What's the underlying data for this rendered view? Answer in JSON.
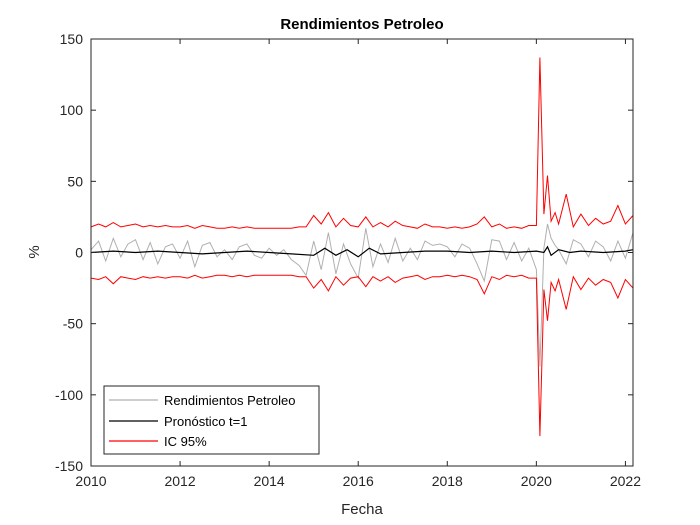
{
  "chart_data": {
    "type": "line",
    "title": "Rendimientos Petroleo",
    "xlabel": "Fecha",
    "ylabel": "%",
    "xlim": [
      2010,
      2022.17
    ],
    "ylim": [
      -150,
      150
    ],
    "xticks": [
      2010,
      2012,
      2014,
      2016,
      2018,
      2020,
      2022
    ],
    "yticks": [
      -150,
      -100,
      -50,
      0,
      50,
      100,
      150
    ],
    "xtick_labels": [
      "2010",
      "2012",
      "2014",
      "2016",
      "2018",
      "2020",
      "2022"
    ],
    "ytick_labels": [
      "-150",
      "-100",
      "-50",
      "0",
      "50",
      "100",
      "150"
    ],
    "grid": false,
    "legend_placement": "bottom-left",
    "series": [
      {
        "name": "Rendimientos Petroleo",
        "color": "#b0b0b0",
        "x": [
          2010.0,
          2010.17,
          2010.33,
          2010.5,
          2010.67,
          2010.83,
          2011.0,
          2011.17,
          2011.33,
          2011.5,
          2011.67,
          2011.83,
          2012.0,
          2012.17,
          2012.33,
          2012.5,
          2012.67,
          2012.83,
          2013.0,
          2013.17,
          2013.33,
          2013.5,
          2013.67,
          2013.83,
          2014.0,
          2014.17,
          2014.33,
          2014.5,
          2014.67,
          2014.83,
          2015.0,
          2015.17,
          2015.33,
          2015.5,
          2015.67,
          2015.83,
          2016.0,
          2016.17,
          2016.33,
          2016.5,
          2016.67,
          2016.83,
          2017.0,
          2017.17,
          2017.33,
          2017.5,
          2017.67,
          2017.83,
          2018.0,
          2018.17,
          2018.33,
          2018.5,
          2018.67,
          2018.83,
          2019.0,
          2019.17,
          2019.33,
          2019.5,
          2019.67,
          2019.83,
          2020.0,
          2020.08,
          2020.17,
          2020.25,
          2020.33,
          2020.42,
          2020.5,
          2020.67,
          2020.83,
          2021.0,
          2021.17,
          2021.33,
          2021.5,
          2021.67,
          2021.83,
          2022.0,
          2022.17
        ],
        "y": [
          2,
          8,
          -6,
          10,
          -3,
          6,
          9,
          -5,
          7,
          -8,
          4,
          6,
          -4,
          8,
          -10,
          5,
          7,
          -3,
          2,
          -5,
          4,
          6,
          -2,
          -4,
          3,
          -2,
          2,
          -5,
          -9,
          -16,
          8,
          -12,
          14,
          -15,
          6,
          -8,
          -18,
          17,
          -10,
          6,
          -7,
          10,
          -6,
          3,
          -5,
          8,
          5,
          6,
          4,
          -3,
          6,
          3,
          -8,
          -20,
          9,
          8,
          -5,
          7,
          -6,
          3,
          -12,
          -80,
          3,
          20,
          10,
          5,
          2,
          -8,
          9,
          6,
          -3,
          8,
          4,
          -6,
          8,
          -4,
          14
        ]
      },
      {
        "name": "Pronóstico t=1",
        "color": "#000000",
        "x": [
          2010.0,
          2010.5,
          2011.0,
          2011.5,
          2012.0,
          2012.5,
          2013.0,
          2013.5,
          2014.0,
          2014.5,
          2015.0,
          2015.25,
          2015.5,
          2015.75,
          2016.0,
          2016.25,
          2016.5,
          2017.0,
          2017.5,
          2018.0,
          2018.5,
          2019.0,
          2019.5,
          2020.0,
          2020.17,
          2020.25,
          2020.33,
          2020.5,
          2020.75,
          2021.0,
          2021.5,
          2022.0,
          2022.17
        ],
        "y": [
          0,
          1,
          0,
          1,
          0,
          -1,
          0,
          1,
          0,
          -1,
          -2,
          3,
          -2,
          2,
          -3,
          3,
          -1,
          0,
          1,
          1,
          0,
          1,
          0,
          1,
          0,
          4,
          -2,
          2,
          0,
          1,
          0,
          1,
          2
        ]
      },
      {
        "name": "IC 95%",
        "color": "#ff0000",
        "x": [
          2010.0,
          2010.17,
          2010.33,
          2010.5,
          2010.67,
          2010.83,
          2011.0,
          2011.17,
          2011.33,
          2011.5,
          2011.67,
          2011.83,
          2012.0,
          2012.17,
          2012.33,
          2012.5,
          2012.67,
          2012.83,
          2013.0,
          2013.17,
          2013.33,
          2013.5,
          2013.67,
          2013.83,
          2014.0,
          2014.17,
          2014.33,
          2014.5,
          2014.67,
          2014.83,
          2015.0,
          2015.17,
          2015.33,
          2015.5,
          2015.67,
          2015.83,
          2016.0,
          2016.17,
          2016.33,
          2016.5,
          2016.67,
          2016.83,
          2017.0,
          2017.17,
          2017.33,
          2017.5,
          2017.67,
          2017.83,
          2018.0,
          2018.17,
          2018.33,
          2018.5,
          2018.67,
          2018.83,
          2019.0,
          2019.17,
          2019.33,
          2019.5,
          2019.67,
          2019.83,
          2020.0,
          2020.08,
          2020.17,
          2020.25,
          2020.33,
          2020.42,
          2020.5,
          2020.67,
          2020.83,
          2021.0,
          2021.17,
          2021.33,
          2021.5,
          2021.67,
          2021.83,
          2022.0,
          2022.17
        ],
        "y_upper": [
          18,
          20,
          18,
          21,
          18,
          19,
          20,
          18,
          19,
          18,
          19,
          18,
          18,
          19,
          17,
          19,
          18,
          17,
          17,
          18,
          17,
          18,
          17,
          17,
          17,
          17,
          17,
          17,
          18,
          18,
          26,
          20,
          28,
          18,
          24,
          19,
          18,
          25,
          18,
          21,
          18,
          22,
          19,
          18,
          17,
          20,
          18,
          18,
          17,
          18,
          17,
          18,
          20,
          25,
          18,
          20,
          17,
          18,
          17,
          19,
          19,
          137,
          27,
          54,
          22,
          28,
          20,
          41,
          18,
          27,
          19,
          24,
          20,
          22,
          33,
          20,
          26
        ],
        "y_lower": [
          -18,
          -19,
          -17,
          -22,
          -17,
          -18,
          -19,
          -17,
          -18,
          -17,
          -18,
          -17,
          -17,
          -18,
          -16,
          -18,
          -17,
          -16,
          -16,
          -17,
          -16,
          -17,
          -16,
          -16,
          -16,
          -16,
          -16,
          -16,
          -17,
          -17,
          -25,
          -19,
          -27,
          -17,
          -23,
          -18,
          -17,
          -24,
          -17,
          -20,
          -17,
          -21,
          -18,
          -17,
          -16,
          -19,
          -17,
          -17,
          -16,
          -17,
          -16,
          -17,
          -19,
          -29,
          -17,
          -19,
          -16,
          -17,
          -16,
          -18,
          -18,
          -129,
          -26,
          -48,
          -21,
          -27,
          -19,
          -40,
          -17,
          -26,
          -18,
          -23,
          -19,
          -21,
          -32,
          -19,
          -25
        ]
      }
    ]
  }
}
